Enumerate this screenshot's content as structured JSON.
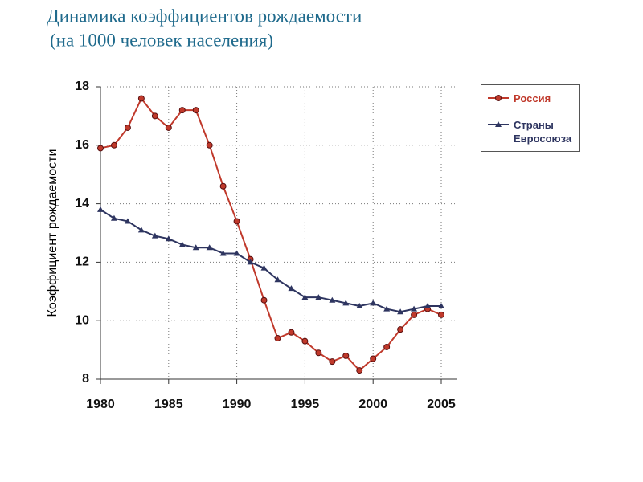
{
  "chart_data": {
    "type": "line",
    "title": "Динамика  коэффициентов рождаемости",
    "subtitle": "(на 1000 человек населения)",
    "y_label": "Коэффициент рождаемости",
    "x": [
      1980,
      1981,
      1982,
      1983,
      1984,
      1985,
      1986,
      1987,
      1988,
      1989,
      1990,
      1991,
      1992,
      1993,
      1994,
      1995,
      1996,
      1997,
      1998,
      1999,
      2000,
      2001,
      2002,
      2003,
      2004,
      2005
    ],
    "series": [
      {
        "name": "Россия",
        "color": "#c0392b",
        "marker": "circle",
        "values": [
          15.9,
          16.0,
          16.6,
          17.6,
          17.0,
          16.6,
          17.2,
          17.2,
          16.0,
          14.6,
          13.4,
          12.1,
          10.7,
          9.4,
          9.6,
          9.3,
          8.9,
          8.6,
          8.8,
          8.3,
          8.7,
          9.1,
          9.7,
          10.2,
          10.4,
          10.2
        ]
      },
      {
        "name": "Страны Евросоюза",
        "color": "#2e3560",
        "marker": "triangle",
        "values": [
          13.8,
          13.5,
          13.4,
          13.1,
          12.9,
          12.8,
          12.6,
          12.5,
          12.5,
          12.3,
          12.3,
          12.0,
          11.8,
          11.4,
          11.1,
          10.8,
          10.8,
          10.7,
          10.6,
          10.5,
          10.6,
          10.4,
          10.3,
          10.4,
          10.5,
          10.5
        ]
      }
    ],
    "xlim": [
      1980,
      2005
    ],
    "xticks": [
      1980,
      1985,
      1990,
      1995,
      2000,
      2005
    ],
    "ylim": [
      8,
      18
    ],
    "yticks": [
      8,
      10,
      12,
      14,
      16,
      18
    ],
    "grid": true,
    "legend": "right"
  }
}
